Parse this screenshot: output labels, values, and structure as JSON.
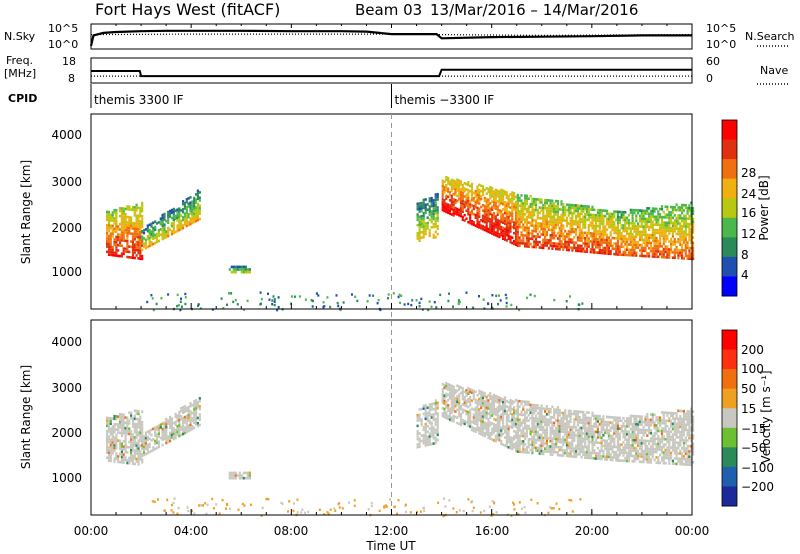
{
  "header": {
    "radar": "Fort Hays West (fitACF)",
    "beam": "Beam 03",
    "date_range": "13/Mar/2016 – 14/Mar/2016"
  },
  "top_panels": {
    "nsky_label": "N.Sky",
    "nsky_ticks": [
      "10^5",
      "10^0"
    ],
    "nsearch_label": "N.Search",
    "nsearch_ticks": [
      "10^5",
      "10^0"
    ],
    "freq_label_line1": "Freq.",
    "freq_label_line2": "[MHz]",
    "freq_ticks": [
      "18",
      "8"
    ],
    "nave_label": "Nave",
    "nave_ticks": [
      "60",
      "0"
    ],
    "cpid_label": "CPID",
    "cpid_segments": [
      {
        "start_hour": 0.0,
        "label": "themis 3300 IF"
      },
      {
        "start_hour": 12.0,
        "label": "themis −3300 IF"
      }
    ]
  },
  "power_panel": {
    "ylabel": "Slant Range [km]",
    "yticks": [
      "4000",
      "3000",
      "2000",
      "1000"
    ],
    "colorbar_label": "Power [dB]",
    "colorbar_ticks": [
      "28",
      "24",
      "20",
      "16",
      "12",
      "8",
      "4"
    ],
    "colors": [
      "#0000ff",
      "#1f4fb0",
      "#2a8a5a",
      "#4cb84c",
      "#b8c810",
      "#f0b010",
      "#f07010",
      "#e03010",
      "#ff0000"
    ]
  },
  "velocity_panel": {
    "ylabel": "Slant Range [km]",
    "yticks": [
      "4000",
      "3000",
      "2000",
      "1000"
    ],
    "colorbar_label": "Velocity [m s⁻¹]",
    "colorbar_ticks": [
      "200",
      "100",
      "50",
      "15",
      "−15",
      "−50",
      "−100",
      "−200"
    ],
    "colors": [
      "#1a2a9a",
      "#1f5fb0",
      "#2a8a5a",
      "#6cc030",
      "#c8c8c0",
      "#f0a020",
      "#f07010",
      "#ff3010",
      "#ff0000"
    ]
  },
  "xaxis": {
    "label": "Time UT",
    "ticks": [
      "00:00",
      "04:00",
      "08:00",
      "12:00",
      "16:00",
      "20:00",
      "00:00"
    ]
  },
  "chart_data": {
    "type": "heatmap",
    "title": "Fort Hays West (fitACF)  Beam 03  13/Mar/2016 – 14/Mar/2016",
    "xlabel": "Time UT",
    "ylabel": "Slant Range [km]",
    "xlim_hours": [
      0,
      24
    ],
    "ylim_km": [
      200,
      4600
    ],
    "grid": false,
    "power_scale_db": [
      0,
      32
    ],
    "velocity_scale_ms": [
      -250,
      250
    ],
    "nsky_log10": [
      [
        0.0,
        0.5
      ],
      [
        0.1,
        3.0
      ],
      [
        0.5,
        3.6
      ],
      [
        1.0,
        3.8
      ],
      [
        2.0,
        4.0
      ],
      [
        3.0,
        4.1
      ],
      [
        4.0,
        4.1
      ],
      [
        6.0,
        4.1
      ],
      [
        8.0,
        4.0
      ],
      [
        10.0,
        4.0
      ],
      [
        11.0,
        3.9
      ],
      [
        12.0,
        3.3
      ],
      [
        13.8,
        3.3
      ],
      [
        14.0,
        2.3
      ],
      [
        16.0,
        2.6
      ],
      [
        18.0,
        2.7
      ],
      [
        20.0,
        2.8
      ],
      [
        22.0,
        3.0
      ],
      [
        24.0,
        3.0
      ]
    ],
    "nsearch_log10": [
      [
        0.0,
        3.2
      ],
      [
        4.0,
        3.3
      ],
      [
        8.0,
        3.3
      ],
      [
        12.0,
        3.3
      ],
      [
        14.0,
        3.2
      ],
      [
        18.0,
        3.0
      ],
      [
        24.0,
        3.2
      ]
    ],
    "freq_mhz": [
      [
        0.0,
        13.0
      ],
      [
        1.95,
        13.0
      ],
      [
        2.0,
        10.7
      ],
      [
        13.9,
        10.7
      ],
      [
        14.0,
        13.6
      ],
      [
        24.0,
        13.6
      ]
    ],
    "nave": [
      [
        0.0,
        16
      ],
      [
        24.0,
        16
      ]
    ],
    "echo_regions": [
      {
        "t0": 0.6,
        "t1": 2.0,
        "r_low": [
          1400,
          1300
        ],
        "r_high": [
          2400,
          2600
        ],
        "power_db": 22,
        "velocity_ms": 0
      },
      {
        "t0": 2.0,
        "t1": 4.3,
        "r_low": [
          1500,
          2200
        ],
        "r_high": [
          2000,
          2900
        ],
        "power_db": 12,
        "velocity_ms": 0
      },
      {
        "t0": 5.5,
        "t1": 6.3,
        "r_low": [
          1000,
          1000
        ],
        "r_high": [
          1200,
          1200
        ],
        "power_db": 8,
        "velocity_ms": -30
      },
      {
        "t0": 13.0,
        "t1": 13.8,
        "r_low": [
          1700,
          1800
        ],
        "r_high": [
          2600,
          2800
        ],
        "power_db": 12,
        "velocity_ms": 30
      },
      {
        "t0": 14.0,
        "t1": 17.0,
        "r_low": [
          2400,
          1600
        ],
        "r_high": [
          3200,
          2800
        ],
        "power_db": 24,
        "velocity_ms": 0
      },
      {
        "t0": 17.0,
        "t1": 21.0,
        "r_low": [
          1600,
          1400
        ],
        "r_high": [
          2800,
          2400
        ],
        "power_db": 20,
        "velocity_ms": 0
      },
      {
        "t0": 21.0,
        "t1": 24.0,
        "r_low": [
          1400,
          1300
        ],
        "r_high": [
          2400,
          2600
        ],
        "power_db": 18,
        "velocity_ms": 0
      }
    ],
    "near_range_scatter": {
      "r_km": [
        200,
        600
      ],
      "t0": 2.0,
      "t1": 20.0,
      "power_db": 8,
      "velocity_ms": -40
    }
  }
}
